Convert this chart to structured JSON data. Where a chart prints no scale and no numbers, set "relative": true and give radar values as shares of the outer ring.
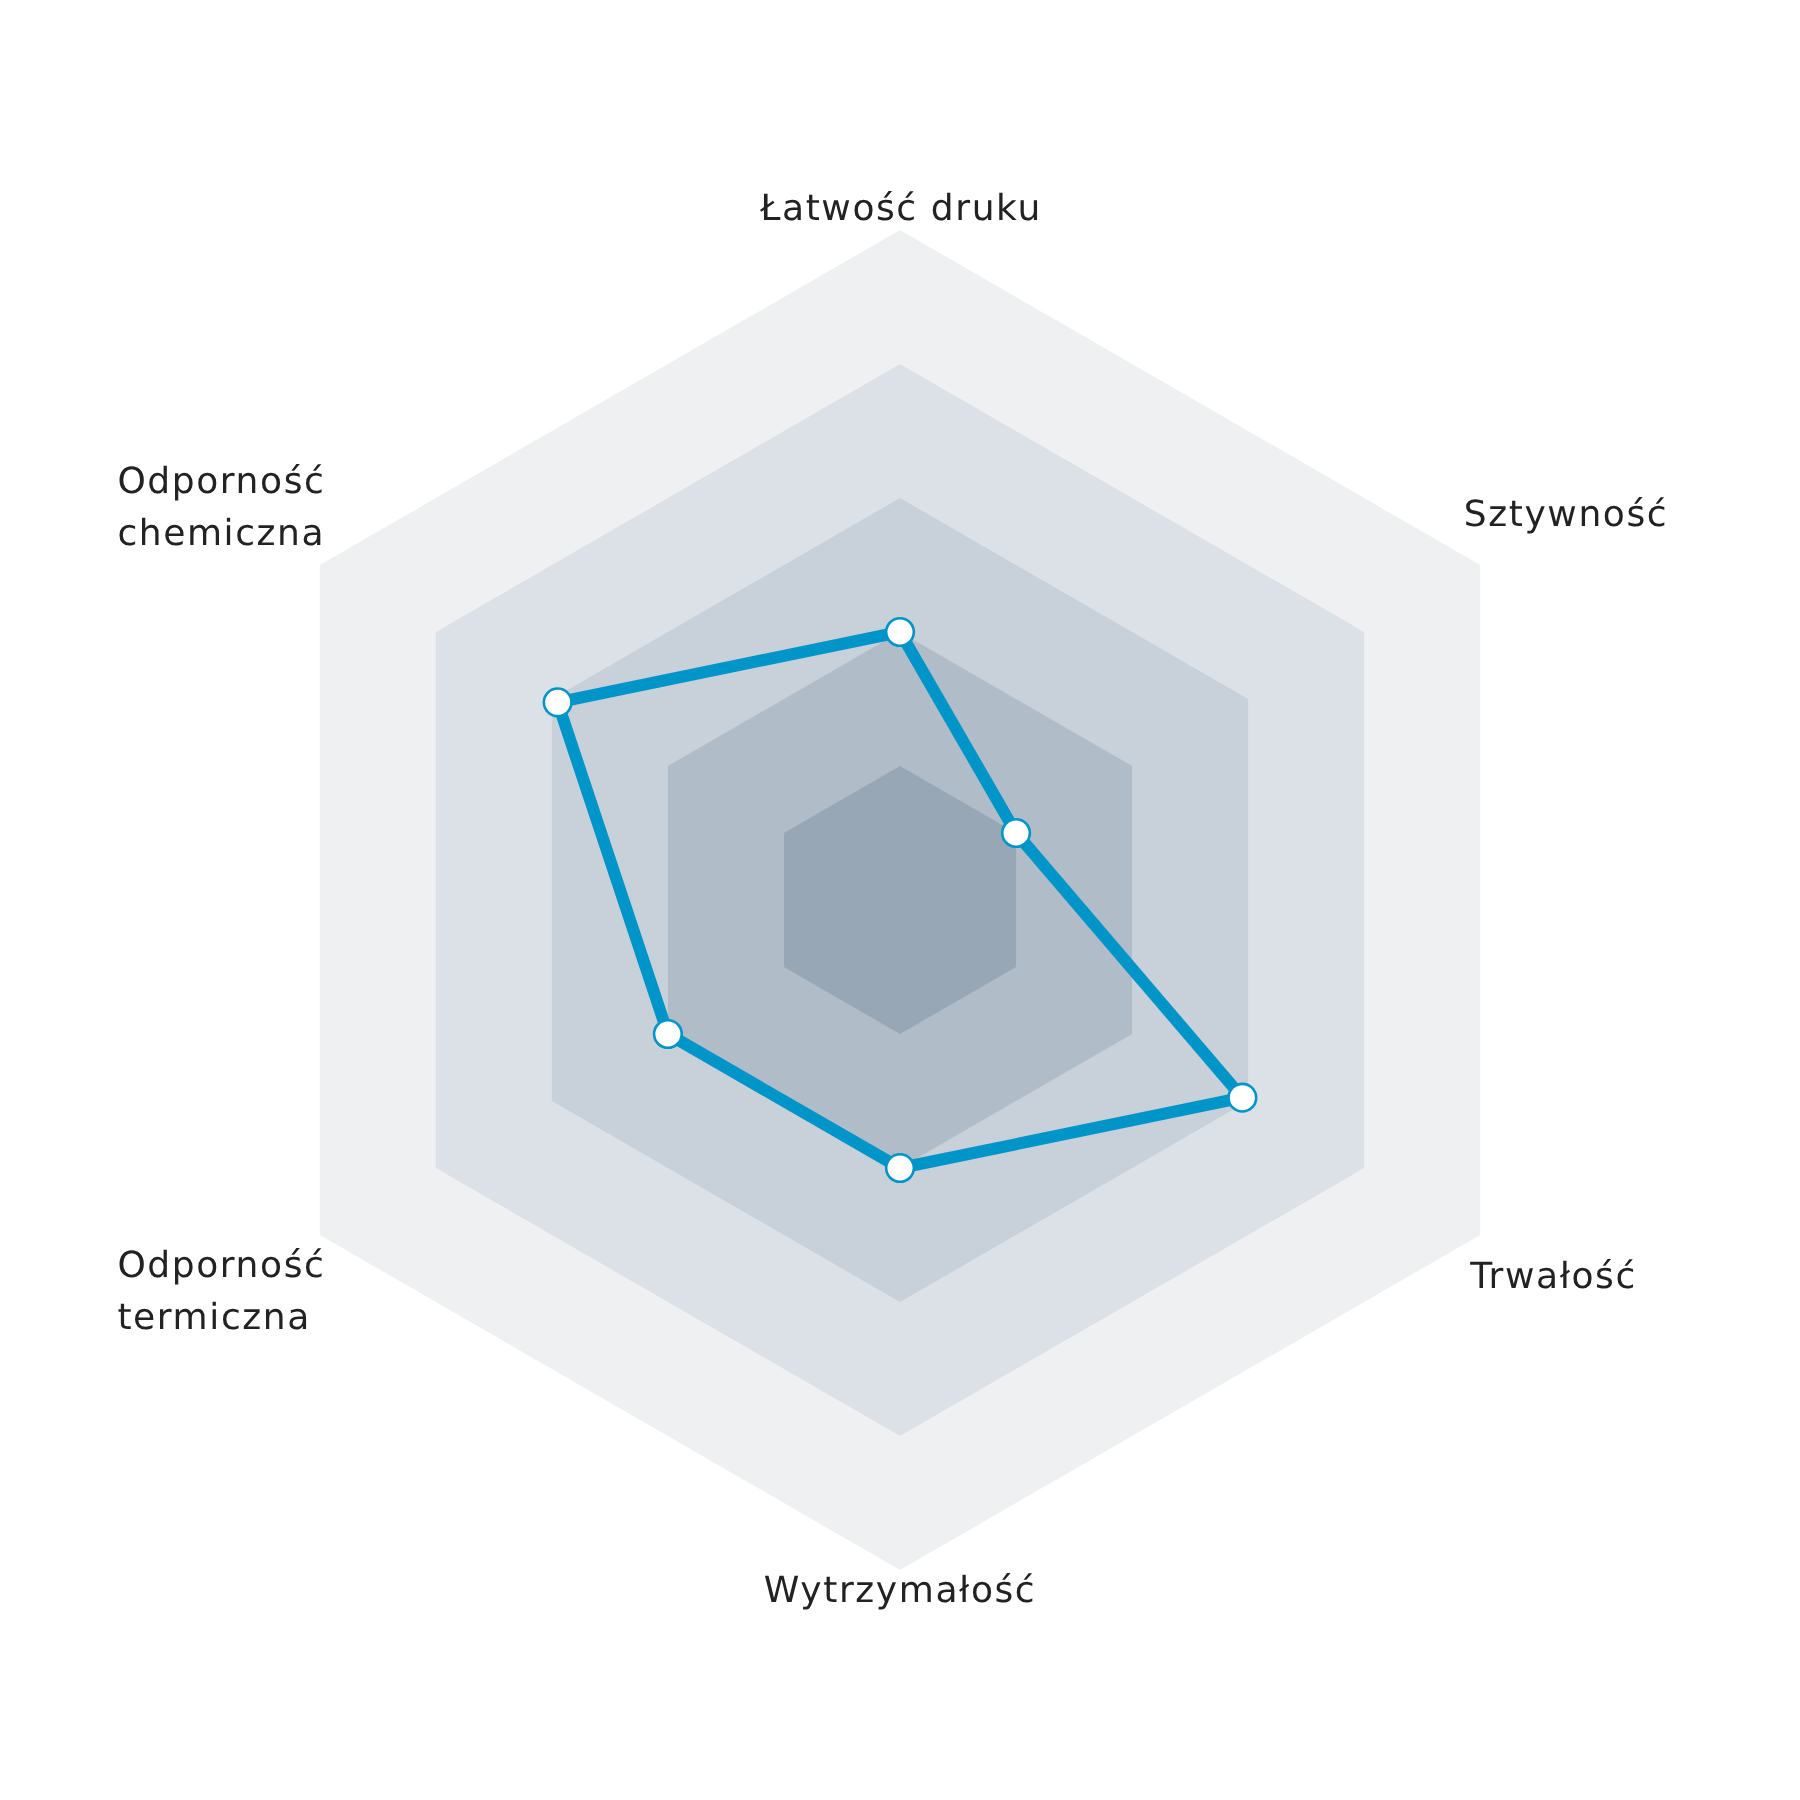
{
  "chart_data": {
    "type": "radar",
    "categories": [
      "Łatwość druku",
      "Sztywność",
      "Trwałość",
      "Wytrzymałość",
      "Odporność termiczna",
      "Odporność chemiczna"
    ],
    "relative": true,
    "grid": true,
    "marker": "circle",
    "series": [
      {
        "color": "#0095c8",
        "values": [
          0.4,
          0.2,
          0.59,
          0.4,
          0.4,
          0.59
        ]
      }
    ]
  }
}
